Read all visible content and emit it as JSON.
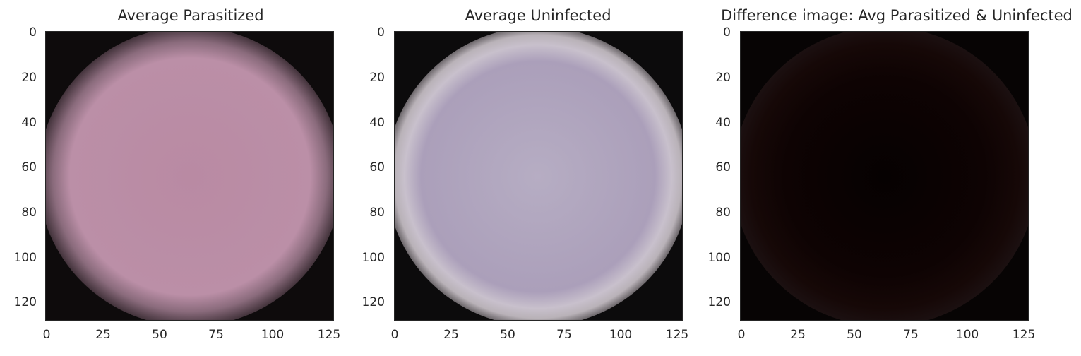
{
  "panels": [
    {
      "title": "Average Parasitized",
      "y_ticks": [
        "0",
        "20",
        "40",
        "60",
        "80",
        "100",
        "120"
      ],
      "x_ticks": [
        "0",
        "25",
        "50",
        "75",
        "100",
        "125"
      ],
      "cell_color": "#b88ca4",
      "rim_color": "#d4c4cc",
      "background": "#0e0b0c"
    },
    {
      "title": "Average Uninfected",
      "y_ticks": [
        "0",
        "20",
        "40",
        "60",
        "80",
        "100",
        "120"
      ],
      "x_ticks": [
        "0",
        "25",
        "50",
        "75",
        "100",
        "125"
      ],
      "cell_color": "#aa9eb8",
      "rim_color": "#e2dde6",
      "background": "#0c0b0c"
    },
    {
      "title": "Difference image: Avg Parasitized & Uninfected",
      "y_ticks": [
        "0",
        "20",
        "40",
        "60",
        "80",
        "100",
        "120"
      ],
      "x_ticks": [
        "0",
        "25",
        "50",
        "75",
        "100",
        "125"
      ],
      "cell_color": "#0c0303",
      "rim_color": "#1a0c0c",
      "background": "#070404"
    }
  ]
}
